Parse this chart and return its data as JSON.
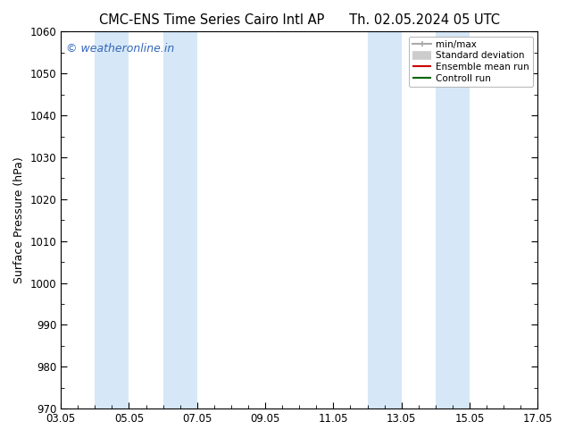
{
  "title_left": "CMC-ENS Time Series Cairo Intl AP",
  "title_right": "Th. 02.05.2024 05 UTC",
  "ylabel": "Surface Pressure (hPa)",
  "ylim": [
    970,
    1060
  ],
  "yticks": [
    970,
    980,
    990,
    1000,
    1010,
    1020,
    1030,
    1040,
    1050,
    1060
  ],
  "xtick_labels": [
    "03.05",
    "05.05",
    "07.05",
    "09.05",
    "11.05",
    "13.05",
    "15.05",
    "17.05"
  ],
  "xtick_positions": [
    0,
    2,
    4,
    6,
    8,
    10,
    12,
    14
  ],
  "shaded_regions": [
    {
      "x_start": 1.0,
      "x_end": 2.0,
      "color": "#d6e8f7"
    },
    {
      "x_start": 3.0,
      "x_end": 4.0,
      "color": "#d6e8f7"
    },
    {
      "x_start": 9.0,
      "x_end": 10.0,
      "color": "#d6e8f7"
    },
    {
      "x_start": 11.0,
      "x_end": 12.0,
      "color": "#d6e8f7"
    }
  ],
  "watermark_text": "© weatheronline.in",
  "watermark_color": "#3366bb",
  "legend_entries": [
    {
      "label": "min/max",
      "color": "#aaaaaa",
      "linewidth": 1.5
    },
    {
      "label": "Standard deviation",
      "color": "#cccccc",
      "linewidth": 7
    },
    {
      "label": "Ensemble mean run",
      "color": "#cc0000",
      "linewidth": 1.5
    },
    {
      "label": "Controll run",
      "color": "#006600",
      "linewidth": 1.5
    }
  ],
  "bg_color": "#ffffff",
  "plot_bg_color": "#ffffff",
  "title_fontsize": 10.5,
  "axis_fontsize": 9,
  "tick_fontsize": 8.5
}
